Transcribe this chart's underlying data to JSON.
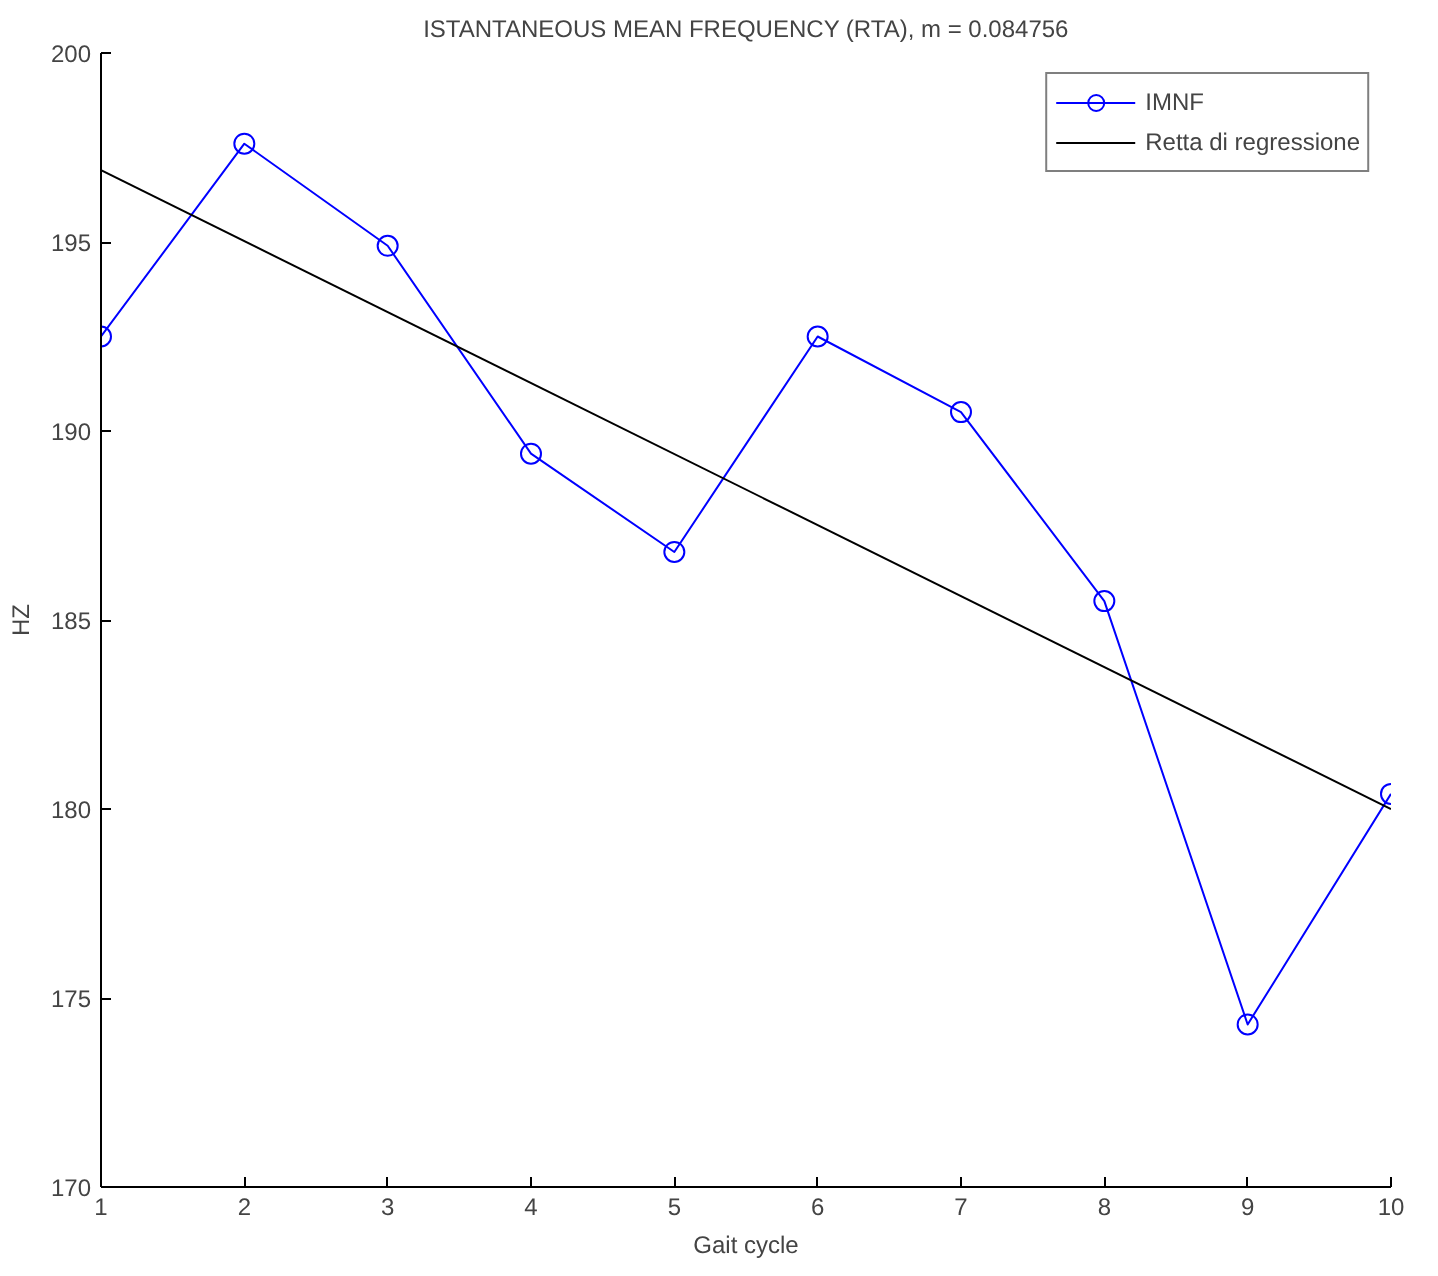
{
  "chart_data": {
    "type": "line",
    "title": "ISTANTANEOUS MEAN FREQUENCY (RTA), m = 0.084756",
    "xlabel": "Gait cycle",
    "ylabel": "HZ",
    "x": [
      1,
      2,
      3,
      4,
      5,
      6,
      7,
      8,
      9,
      10
    ],
    "series": [
      {
        "name": "IMNF",
        "color": "#0000ff",
        "marker": "circle",
        "values": [
          192.5,
          197.6,
          194.9,
          189.4,
          186.8,
          192.5,
          190.5,
          185.5,
          174.3,
          180.4
        ]
      },
      {
        "name": "Retta di regressione",
        "color": "#000000",
        "marker": "none",
        "x": [
          1,
          10
        ],
        "values": [
          196.9,
          180.0
        ]
      }
    ],
    "xlim": [
      1,
      10
    ],
    "xticks": [
      1,
      2,
      3,
      4,
      5,
      6,
      7,
      8,
      9,
      10
    ],
    "ylim": [
      170,
      200
    ],
    "yticks": [
      170,
      175,
      180,
      185,
      190,
      195,
      200
    ],
    "grid": false,
    "legend": "top right"
  }
}
